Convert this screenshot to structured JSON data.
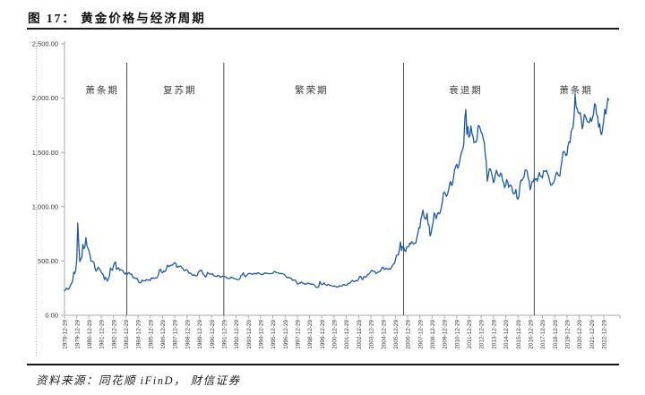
{
  "figure": {
    "title": "图 17： 黄金价格与经济周期",
    "source": "资料来源：同花顺 iFinD， 财信证券"
  },
  "chart_data": {
    "type": "line",
    "title": "黄金价格与经济周期",
    "series_name": "黄金价格",
    "line_color": "#1c59a6",
    "axis_color": "#a9a9a9",
    "divider_color": "#4d4d4d",
    "label_color": "#333333",
    "ylim": [
      0,
      2500
    ],
    "grid": "off",
    "legend": "none",
    "y_tick_labels": [
      "0.00",
      "500.00",
      "1,000.00",
      "1,500.00",
      "2,000.00",
      "2,500.00"
    ],
    "y_tick_values": [
      0,
      500,
      1000,
      1500,
      2000,
      2500
    ],
    "x_tick_labels": [
      "1978-12-29",
      "1979-12-29",
      "1980-12-29",
      "1981-12-29",
      "1982-12-29",
      "1983-12-29",
      "1984-12-29",
      "1985-12-29",
      "1986-12-29",
      "1987-12-29",
      "1988-12-29",
      "1989-12-29",
      "1990-12-29",
      "1991-12-29",
      "1992-12-29",
      "1993-12-29",
      "1994-12-29",
      "1995-12-29",
      "1996-12-29",
      "1997-12-29",
      "1998-12-29",
      "1999-12-29",
      "2000-12-29",
      "2001-12-29",
      "2002-12-29",
      "2003-12-29",
      "2004-12-29",
      "2005-12-29",
      "2006-12-29",
      "2007-12-29",
      "2008-12-29",
      "2009-12-29",
      "2010-12-29",
      "2011-12-29",
      "2012-12-29",
      "2013-12-29",
      "2014-12-29",
      "2015-12-29",
      "2016-12-29",
      "2017-12-29",
      "2018-12-29",
      "2019-12-29",
      "2020-12-29",
      "2021-12-29",
      "2022-12-29"
    ],
    "periods": [
      {
        "label": "萧条期",
        "month_index": 37
      },
      {
        "label": "复苏期",
        "month_index": 113
      },
      {
        "label": "繁荣期",
        "month_index": 242
      },
      {
        "label": "衰退期",
        "month_index": 393
      },
      {
        "label": "萧条期",
        "month_index": 501
      }
    ],
    "divider_month_indices": [
      61,
      156,
      332,
      460
    ],
    "x_start": "1978-12",
    "x_interval": "monthly",
    "monthly_values": [
      226,
      233,
      251,
      242,
      239,
      257,
      279,
      296,
      315,
      397,
      382,
      415,
      512,
      850,
      637,
      494,
      518,
      535,
      653,
      614,
      631,
      715,
      638,
      619,
      589,
      557,
      499,
      498,
      495,
      479,
      426,
      406,
      425,
      443,
      427,
      414,
      398,
      384,
      374,
      330,
      350,
      333,
      315,
      339,
      364,
      436,
      422,
      414,
      457,
      481,
      492,
      420,
      433,
      438,
      413,
      422,
      416,
      412,
      394,
      381,
      389,
      371,
      386,
      394,
      381,
      377,
      378,
      347,
      348,
      341,
      340,
      341,
      320,
      303,
      299,
      304,
      325,
      317,
      317,
      317,
      329,
      324,
      326,
      325,
      321,
      345,
      339,
      346,
      340,
      343,
      343,
      349,
      377,
      418,
      424,
      398,
      391,
      408,
      401,
      408,
      438,
      461,
      450,
      451,
      461,
      460,
      466,
      476,
      486,
      477,
      442,
      444,
      452,
      451,
      451,
      437,
      431,
      412,
      412,
      421,
      418,
      404,
      387,
      390,
      384,
      371,
      367,
      375,
      365,
      362,
      367,
      394,
      409,
      410,
      416,
      393,
      374,
      369,
      352,
      362,
      395,
      389,
      380,
      381,
      378,
      384,
      364,
      363,
      358,
      357,
      367,
      367,
      356,
      348,
      359,
      360,
      361,
      354,
      354,
      344,
      339,
      337,
      341,
      353,
      343,
      346,
      339,
      335,
      334,
      329,
      329,
      330,
      342,
      367,
      372,
      392,
      372,
      355,
      364,
      373,
      383,
      387,
      382,
      384,
      377,
      381,
      386,
      385,
      380,
      391,
      390,
      384,
      379,
      375,
      376,
      382,
      391,
      385,
      388,
      386,
      384,
      383,
      383,
      385,
      387,
      400,
      404,
      396,
      392,
      392,
      385,
      383,
      387,
      383,
      381,
      378,
      369,
      355,
      346,
      352,
      344,
      344,
      341,
      324,
      324,
      323,
      325,
      307,
      288,
      289,
      298,
      296,
      308,
      299,
      292,
      293,
      284,
      289,
      296,
      294,
      291,
      287,
      287,
      286,
      283,
      277,
      261,
      256,
      257,
      264,
      311,
      293,
      283,
      284,
      300,
      286,
      280,
      275,
      285,
      282,
      274,
      274,
      270,
      266,
      272,
      266,
      262,
      263,
      260,
      272,
      270,
      268,
      272,
      284,
      283,
      276,
      276,
      282,
      295,
      294,
      303,
      314,
      321,
      313,
      310,
      319,
      317,
      319,
      333,
      357,
      359,
      340,
      328,
      355,
      356,
      351,
      360,
      379,
      379,
      390,
      407,
      414,
      405,
      406,
      403,
      384,
      392,
      398,
      400,
      405,
      420,
      439,
      442,
      424,
      423,
      434,
      429,
      422,
      431,
      424,
      437,
      456,
      470,
      476,
      510,
      550,
      555,
      557,
      611,
      675,
      596,
      634,
      632,
      599,
      586,
      627,
      630,
      631,
      665,
      655,
      679,
      667,
      655,
      665,
      665,
      713,
      754,
      806,
      803,
      890,
      922,
      968,
      910,
      889,
      889,
      940,
      839,
      829,
      730,
      761,
      816,
      858,
      943,
      924,
      890,
      929,
      946,
      934,
      949,
      996,
      1043,
      1127,
      1135,
      1118,
      1095,
      1113,
      1149,
      1205,
      1233,
      1193,
      1216,
      1271,
      1342,
      1370,
      1391,
      1356,
      1373,
      1424,
      1474,
      1511,
      1529,
      1573,
      1813,
      1895,
      1666,
      1739,
      1640,
      1656,
      1743,
      1674,
      1650,
      1589,
      1598,
      1594,
      1630,
      1745,
      1747,
      1721,
      1684,
      1671,
      1628,
      1593,
      1485,
      1414,
      1235,
      1287,
      1347,
      1348,
      1316,
      1276,
      1221,
      1244,
      1300,
      1336,
      1299,
      1288,
      1279,
      1311,
      1296,
      1237,
      1223,
      1176,
      1200,
      1250,
      1227,
      1178,
      1198,
      1199,
      1181,
      1128,
      1117,
      1125,
      1159,
      1086,
      1068,
      1097,
      1199,
      1246,
      1242,
      1260,
      1276,
      1337,
      1340,
      1327,
      1266,
      1238,
      1157,
      1192,
      1234,
      1231,
      1266,
      1246,
      1260,
      1236,
      1283,
      1315,
      1280,
      1282,
      1264,
      1331,
      1330,
      1325,
      1335,
      1303,
      1281,
      1238,
      1202,
      1198,
      1215,
      1221,
      1250,
      1292,
      1320,
      1301,
      1286,
      1284,
      1359,
      1413,
      1500,
      1511,
      1495,
      1471,
      1479,
      1561,
      1597,
      1591,
      1683,
      1716,
      1732,
      1843,
      2035,
      1922,
      1900,
      1866,
      1858,
      1867,
      1808,
      1718,
      1760,
      1850,
      1835,
      1807,
      1784,
      1777,
      1777,
      1820,
      1787,
      1816,
      1856,
      1948,
      1937,
      1850,
      1837,
      1733,
      1765,
      1681,
      1664,
      1725,
      1797,
      1898,
      1855,
      1912,
      1999,
      1982
    ]
  }
}
